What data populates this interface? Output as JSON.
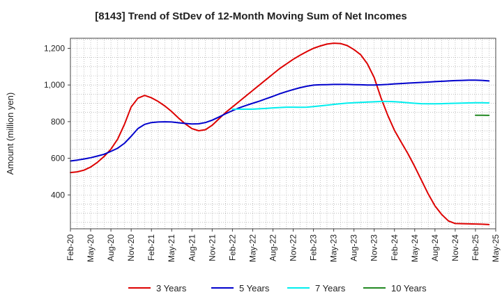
{
  "chart_data": {
    "type": "line",
    "title": "[8143]  Trend of StDev of 12-Month Moving Sum of Net Incomes",
    "xlabel": "",
    "ylabel": "Amount (million yen)",
    "x_tick_labels": [
      "Feb-20",
      "May-20",
      "Aug-20",
      "Nov-20",
      "Feb-21",
      "May-21",
      "Aug-21",
      "Nov-21",
      "Feb-22",
      "May-22",
      "Aug-22",
      "Nov-22",
      "Feb-23",
      "May-23",
      "Aug-23",
      "Nov-23",
      "Feb-24",
      "May-24",
      "Aug-24",
      "Nov-24",
      "Feb-25",
      "May-25"
    ],
    "y_ticks": [
      400,
      600,
      800,
      1000,
      1200
    ],
    "y_tick_labels": [
      "400",
      "600",
      "800",
      "1,000",
      "1,200"
    ],
    "ylim": [
      215,
      1255
    ],
    "grid": true,
    "legend_position": "bottom",
    "series": [
      {
        "name": "3 Years",
        "color": "#dd0000",
        "values": [
          [
            0,
            522
          ],
          [
            1,
            526
          ],
          [
            2,
            535
          ],
          [
            3,
            552
          ],
          [
            4,
            578
          ],
          [
            5,
            610
          ],
          [
            6,
            650
          ],
          [
            7,
            705
          ],
          [
            8,
            785
          ],
          [
            9,
            880
          ],
          [
            10,
            928
          ],
          [
            11,
            943
          ],
          [
            12,
            930
          ],
          [
            13,
            910
          ],
          [
            14,
            885
          ],
          [
            15,
            855
          ],
          [
            16,
            820
          ],
          [
            17,
            788
          ],
          [
            18,
            762
          ],
          [
            19,
            750
          ],
          [
            20,
            756
          ],
          [
            21,
            780
          ],
          [
            22,
            815
          ],
          [
            23,
            850
          ],
          [
            24,
            880
          ],
          [
            25,
            910
          ],
          [
            26,
            940
          ],
          [
            27,
            970
          ],
          [
            28,
            1000
          ],
          [
            29,
            1030
          ],
          [
            30,
            1060
          ],
          [
            31,
            1090
          ],
          [
            32,
            1115
          ],
          [
            33,
            1140
          ],
          [
            34,
            1162
          ],
          [
            35,
            1182
          ],
          [
            36,
            1200
          ],
          [
            37,
            1213
          ],
          [
            38,
            1223
          ],
          [
            39,
            1228
          ],
          [
            40,
            1226
          ],
          [
            41,
            1215
          ],
          [
            42,
            1193
          ],
          [
            43,
            1165
          ],
          [
            44,
            1115
          ],
          [
            45,
            1040
          ],
          [
            46,
            930
          ],
          [
            47,
            835
          ],
          [
            48,
            752
          ],
          [
            49,
            688
          ],
          [
            50,
            625
          ],
          [
            51,
            555
          ],
          [
            52,
            480
          ],
          [
            53,
            405
          ],
          [
            54,
            340
          ],
          [
            55,
            293
          ],
          [
            56,
            258
          ],
          [
            57,
            244
          ],
          [
            58,
            243
          ],
          [
            59,
            242
          ],
          [
            60,
            241
          ],
          [
            61,
            240
          ],
          [
            62,
            238
          ]
        ]
      },
      {
        "name": "5 Years",
        "color": "#0000cc",
        "values": [
          [
            0,
            585
          ],
          [
            1,
            590
          ],
          [
            2,
            596
          ],
          [
            3,
            603
          ],
          [
            4,
            612
          ],
          [
            5,
            622
          ],
          [
            6,
            638
          ],
          [
            7,
            655
          ],
          [
            8,
            682
          ],
          [
            9,
            720
          ],
          [
            10,
            762
          ],
          [
            11,
            785
          ],
          [
            12,
            795
          ],
          [
            13,
            798
          ],
          [
            14,
            799
          ],
          [
            15,
            798
          ],
          [
            16,
            794
          ],
          [
            17,
            790
          ],
          [
            18,
            787
          ],
          [
            19,
            788
          ],
          [
            20,
            795
          ],
          [
            21,
            808
          ],
          [
            22,
            825
          ],
          [
            23,
            843
          ],
          [
            24,
            860
          ],
          [
            25,
            875
          ],
          [
            26,
            888
          ],
          [
            27,
            900
          ],
          [
            28,
            912
          ],
          [
            29,
            925
          ],
          [
            30,
            938
          ],
          [
            31,
            952
          ],
          [
            32,
            964
          ],
          [
            33,
            975
          ],
          [
            34,
            985
          ],
          [
            35,
            993
          ],
          [
            36,
            999
          ],
          [
            37,
            1001
          ],
          [
            38,
            1002
          ],
          [
            39,
            1003
          ],
          [
            40,
            1003
          ],
          [
            41,
            1003
          ],
          [
            42,
            1002
          ],
          [
            43,
            1001
          ],
          [
            44,
            1000
          ],
          [
            45,
            1000
          ],
          [
            46,
            1001
          ],
          [
            47,
            1003
          ],
          [
            48,
            1006
          ],
          [
            49,
            1008
          ],
          [
            50,
            1010
          ],
          [
            51,
            1012
          ],
          [
            52,
            1014
          ],
          [
            53,
            1016
          ],
          [
            54,
            1018
          ],
          [
            55,
            1020
          ],
          [
            56,
            1022
          ],
          [
            57,
            1024
          ],
          [
            58,
            1025
          ],
          [
            59,
            1026
          ],
          [
            60,
            1026
          ],
          [
            61,
            1025
          ],
          [
            62,
            1022
          ]
        ]
      },
      {
        "name": "7 Years",
        "color": "#00eeee",
        "values": [
          [
            24,
            868
          ],
          [
            25,
            868
          ],
          [
            26,
            868
          ],
          [
            27,
            868
          ],
          [
            28,
            870
          ],
          [
            29,
            872
          ],
          [
            30,
            875
          ],
          [
            31,
            877
          ],
          [
            32,
            879
          ],
          [
            33,
            879
          ],
          [
            34,
            878
          ],
          [
            35,
            879
          ],
          [
            36,
            882
          ],
          [
            37,
            886
          ],
          [
            38,
            890
          ],
          [
            39,
            894
          ],
          [
            40,
            898
          ],
          [
            41,
            901
          ],
          [
            42,
            903
          ],
          [
            43,
            905
          ],
          [
            44,
            907
          ],
          [
            45,
            908
          ],
          [
            46,
            910
          ],
          [
            47,
            910
          ],
          [
            48,
            909
          ],
          [
            49,
            906
          ],
          [
            50,
            903
          ],
          [
            51,
            900
          ],
          [
            52,
            898
          ],
          [
            53,
            897
          ],
          [
            54,
            897
          ],
          [
            55,
            898
          ],
          [
            56,
            899
          ],
          [
            57,
            900
          ],
          [
            58,
            901
          ],
          [
            59,
            902
          ],
          [
            60,
            903
          ],
          [
            61,
            903
          ],
          [
            62,
            902
          ]
        ]
      },
      {
        "name": "10 Years",
        "color": "#228822",
        "values": [
          [
            60,
            835
          ],
          [
            61,
            835
          ],
          [
            62,
            834
          ]
        ]
      }
    ]
  }
}
